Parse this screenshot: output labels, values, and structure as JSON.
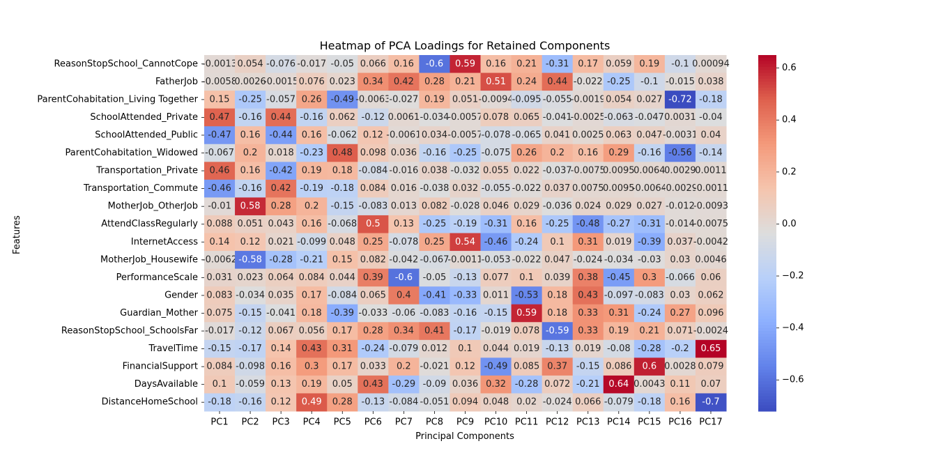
{
  "chart_data": {
    "type": "heatmap",
    "title": "Heatmap of PCA Loadings for Retained Components",
    "xlabel": "Principal Components",
    "ylabel": "Features",
    "colormap": "coolwarm",
    "color_low": "#3b4cc0",
    "color_mid": "#dddddd",
    "color_high": "#b40426",
    "vmin": -0.72,
    "vmax": 0.65,
    "colorbar_ticks": [
      "−0.6",
      "−0.4",
      "−0.2",
      "0.0",
      "0.2",
      "0.4",
      "0.6"
    ],
    "colorbar_tick_values": [
      -0.6,
      -0.4,
      -0.2,
      0.0,
      0.2,
      0.4,
      0.6
    ],
    "columns": [
      "PC1",
      "PC2",
      "PC3",
      "PC4",
      "PC5",
      "PC6",
      "PC7",
      "PC8",
      "PC9",
      "PC10",
      "PC11",
      "PC12",
      "PC13",
      "PC14",
      "PC15",
      "PC16",
      "PC17"
    ],
    "rows": [
      "ReasonStopSchool_CannotCope",
      "FatherJob",
      "ParentCohabitation_Living Together",
      "SchoolAttended_Private",
      "SchoolAttended_Public",
      "ParentCohabitation_Widowed",
      "Transportation_Private",
      "Transportation_Commute",
      "MotherJob_OtherJob",
      "AttendClassRegularly",
      "InternetAccess",
      "MotherJob_Housewife",
      "PerformanceScale",
      "Gender",
      "Guardian_Mother",
      "ReasonStopSchool_SchoolsFar",
      "TravelTime",
      "FinancialSupport",
      "DaysAvailable",
      "DistanceHomeSchool"
    ],
    "labels": [
      [
        "-0.0013",
        "0.054",
        "-0.076",
        "-0.017",
        "-0.05",
        "0.066",
        "0.16",
        "-0.6",
        "0.59",
        "0.16",
        "0.21",
        "-0.31",
        "0.17",
        "0.059",
        "0.19",
        "-0.1",
        "0.00094"
      ],
      [
        "-0.0058",
        "0.0026",
        "-0.0015",
        "0.076",
        "0.023",
        "0.34",
        "0.42",
        "0.28",
        "0.21",
        "0.51",
        "0.24",
        "0.44",
        "-0.022",
        "-0.25",
        "-0.1",
        "-0.015",
        "0.038"
      ],
      [
        "0.15",
        "-0.25",
        "-0.057",
        "0.26",
        "-0.49",
        "-0.0063",
        "-0.027",
        "0.19",
        "0.051",
        "-0.0094",
        "-0.095",
        "-0.055",
        "-0.0019",
        "0.054",
        "0.027",
        "-0.72",
        "-0.18"
      ],
      [
        "0.47",
        "-0.16",
        "0.44",
        "-0.16",
        "0.062",
        "-0.12",
        "0.0061",
        "-0.034",
        "-0.0057",
        "0.078",
        "0.065",
        "-0.041",
        "-0.0025",
        "-0.063",
        "-0.047",
        "0.0031",
        "-0.04"
      ],
      [
        "-0.47",
        "0.16",
        "-0.44",
        "0.16",
        "-0.062",
        "0.12",
        "-0.0061",
        "0.034",
        "-0.0057",
        "-0.078",
        "-0.065",
        "0.041",
        "0.0025",
        "0.063",
        "0.047",
        "-0.0031",
        "0.04"
      ],
      [
        "-0.067",
        "0.2",
        "0.018",
        "-0.23",
        "0.48",
        "0.098",
        "0.036",
        "-0.16",
        "-0.25",
        "-0.075",
        "0.26",
        "0.2",
        "0.16",
        "0.29",
        "-0.16",
        "-0.56",
        "-0.14"
      ],
      [
        "0.46",
        "0.16",
        "-0.42",
        "0.19",
        "0.18",
        "-0.084",
        "-0.016",
        "0.038",
        "-0.032",
        "0.055",
        "0.022",
        "-0.037",
        "-0.0075",
        "0.0095",
        "0.0064",
        "0.0029",
        "0.0011"
      ],
      [
        "-0.46",
        "-0.16",
        "0.42",
        "-0.19",
        "-0.18",
        "0.084",
        "0.016",
        "-0.038",
        "0.032",
        "-0.055",
        "-0.022",
        "0.037",
        "0.0075",
        "0.0095",
        "-0.0064",
        "-0.0029",
        "-0.0011"
      ],
      [
        "-0.01",
        "0.58",
        "0.28",
        "0.2",
        "-0.15",
        "-0.083",
        "0.013",
        "0.082",
        "-0.028",
        "0.046",
        "0.029",
        "-0.036",
        "0.024",
        "0.029",
        "0.027",
        "-0.012",
        "-0.0093"
      ],
      [
        "0.088",
        "0.051",
        "0.043",
        "0.16",
        "-0.068",
        "0.5",
        "0.13",
        "-0.25",
        "-0.19",
        "-0.31",
        "0.16",
        "-0.25",
        "-0.48",
        "-0.27",
        "-0.31",
        "-0.014",
        "-0.0075"
      ],
      [
        "0.14",
        "0.12",
        "0.021",
        "-0.099",
        "0.048",
        "0.25",
        "-0.078",
        "0.25",
        "0.54",
        "-0.46",
        "-0.24",
        "0.1",
        "0.31",
        "0.019",
        "-0.39",
        "0.037",
        "-0.0042"
      ],
      [
        "-0.0062",
        "-0.58",
        "-0.28",
        "-0.21",
        "0.15",
        "0.082",
        "-0.042",
        "-0.067",
        "-0.0011",
        "-0.053",
        "-0.022",
        "0.047",
        "-0.024",
        "-0.034",
        "-0.03",
        "0.03",
        "0.0046"
      ],
      [
        "0.031",
        "0.023",
        "0.064",
        "0.084",
        "0.044",
        "0.39",
        "-0.6",
        "-0.05",
        "-0.13",
        "0.077",
        "0.1",
        "0.039",
        "0.38",
        "-0.45",
        "0.3",
        "-0.066",
        "0.06"
      ],
      [
        "0.083",
        "-0.034",
        "0.035",
        "0.17",
        "-0.084",
        "0.065",
        "0.4",
        "-0.41",
        "-0.33",
        "0.011",
        "-0.53",
        "0.18",
        "0.43",
        "-0.097",
        "-0.083",
        "0.03",
        "0.062"
      ],
      [
        "0.075",
        "-0.15",
        "-0.041",
        "0.18",
        "-0.39",
        "-0.033",
        "-0.06",
        "-0.083",
        "-0.16",
        "-0.15",
        "0.59",
        "0.18",
        "0.33",
        "0.31",
        "-0.24",
        "0.27",
        "0.096"
      ],
      [
        "-0.017",
        "-0.12",
        "0.067",
        "0.056",
        "0.17",
        "0.28",
        "0.34",
        "0.41",
        "-0.17",
        "-0.019",
        "0.078",
        "-0.59",
        "0.33",
        "0.19",
        "0.21",
        "0.071",
        "-0.0024"
      ],
      [
        "-0.15",
        "-0.17",
        "0.14",
        "0.43",
        "0.31",
        "-0.24",
        "-0.079",
        "0.012",
        "0.1",
        "0.044",
        "0.019",
        "-0.13",
        "0.019",
        "-0.08",
        "-0.28",
        "-0.2",
        "0.65"
      ],
      [
        "0.084",
        "-0.098",
        "0.16",
        "0.3",
        "0.17",
        "0.033",
        "0.2",
        "-0.021",
        "0.12",
        "-0.49",
        "0.085",
        "0.37",
        "-0.15",
        "0.086",
        "0.6",
        "0.0028",
        "0.079"
      ],
      [
        "0.1",
        "-0.059",
        "0.13",
        "0.19",
        "0.05",
        "0.43",
        "-0.29",
        "-0.09",
        "0.036",
        "0.32",
        "-0.28",
        "0.072",
        "-0.21",
        "0.64",
        "0.0043",
        "0.11",
        "0.07"
      ],
      [
        "-0.18",
        "-0.16",
        "0.12",
        "0.49",
        "0.28",
        "-0.13",
        "-0.084",
        "-0.051",
        "0.094",
        "0.048",
        "0.02",
        "-0.024",
        "0.066",
        "-0.079",
        "-0.18",
        "0.16",
        "-0.7"
      ]
    ]
  }
}
